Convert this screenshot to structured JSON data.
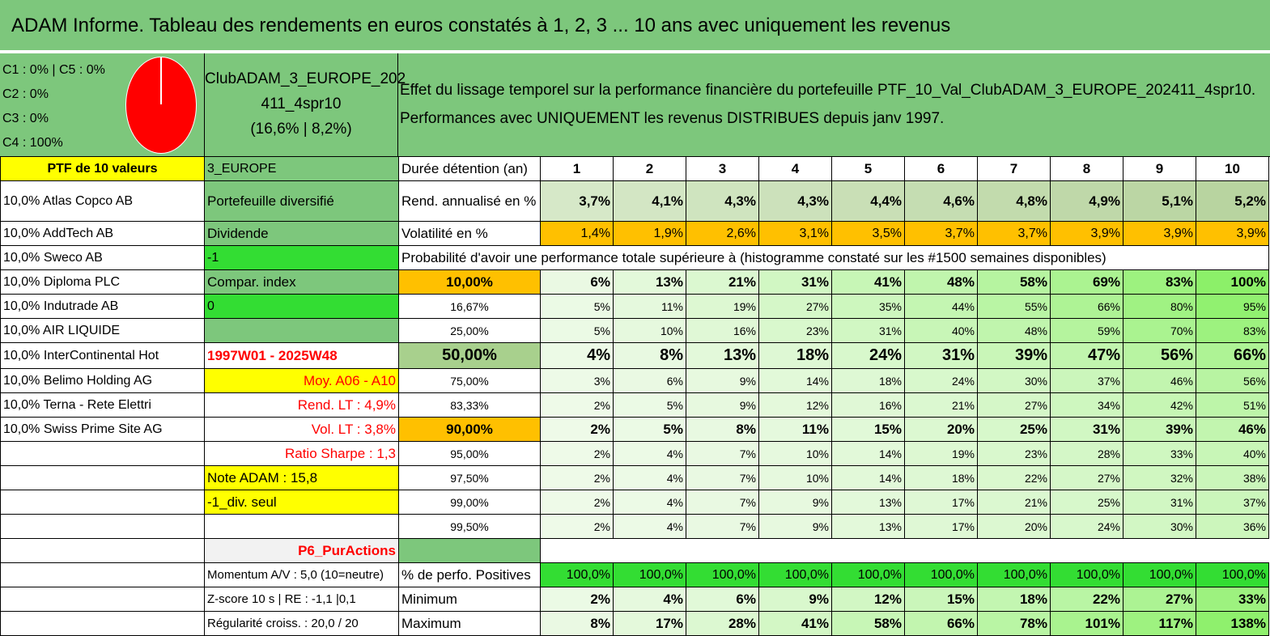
{
  "title": "ADAM Informe. Tableau des rendements en euros constatés à 1, 2, 3 ... 10 ans avec uniquement les revenus",
  "pie": {
    "legend": [
      "C1 : 0% | C5 : 0%",
      "C2 : 0%",
      "C3 : 0%",
      "C4 : 100%"
    ],
    "color": "#ff0000"
  },
  "club": {
    "line1": "ClubADAM_3_EUROPE_202",
    "line2": "411_4spr10",
    "line3": "(16,6% | 8,2%)"
  },
  "effet": {
    "line1": "Effet du lissage temporel sur la performance financière du portefeuille PTF_10_Val_ClubADAM_3_EUROPE_202411_4spr10.",
    "line2": "Performances avec UNIQUEMENT les revenus DISTRIBUES depuis janv 1997."
  },
  "ptf_label": "PTF de 10 valeurs",
  "region": "3_EUROPE",
  "duree_label": "Durée détention (an)",
  "years": [
    "1",
    "2",
    "3",
    "4",
    "5",
    "6",
    "7",
    "8",
    "9",
    "10"
  ],
  "holdings": [
    "10,0% Atlas Copco AB",
    "10,0% AddTech AB",
    "10,0% Sweco AB",
    "10,0% Diploma PLC",
    "10,0% Indutrade AB",
    "10,0% AIR LIQUIDE",
    "10,0% InterContinental Hot",
    "10,0% Belimo Holding AG",
    "10,0% Terna - Rete Elettri",
    "10,0% Swiss Prime Site AG"
  ],
  "info": {
    "portefeuille": "Portefeuille diversifié",
    "dividende": "Dividende",
    "minus1": "-1",
    "compar": "Compar. index",
    "zero": "0",
    "period": "1997W01 - 2025W48",
    "moy": "Moy. A06 - A10",
    "rend_lt": "Rend. LT : 4,9%",
    "vol_lt": "Vol. LT : 3,8%",
    "sharpe": "Ratio Sharpe : 1,3",
    "note": "Note ADAM : 15,8",
    "div_seul": "-1_div. seul",
    "p6": "P6_PurActions",
    "momentum": "Momentum A/V : 5,0 (10=neutre)",
    "zscore": "Z-score 10 s | RE : -1,1 |0,1",
    "regularite": "Régularité croiss. : 20,0 / 20"
  },
  "rend": {
    "label": "Rend. annualisé en %",
    "values": [
      "3,7%",
      "4,1%",
      "4,3%",
      "4,3%",
      "4,4%",
      "4,6%",
      "4,8%",
      "4,9%",
      "5,1%",
      "5,2%"
    ]
  },
  "vol": {
    "label": "Volatilité en %",
    "values": [
      "1,4%",
      "1,9%",
      "2,6%",
      "3,1%",
      "3,5%",
      "3,7%",
      "3,7%",
      "3,9%",
      "3,9%",
      "3,9%"
    ]
  },
  "prob_header": "Probabilité d'avoir une performance totale supérieure à (histogramme constaté sur les #1500 semaines disponibles)",
  "prob_rows": [
    {
      "threshold": "10,00%",
      "values": [
        "6%",
        "13%",
        "21%",
        "31%",
        "41%",
        "48%",
        "58%",
        "69%",
        "83%",
        "100%"
      ]
    },
    {
      "threshold": "16,67%",
      "values": [
        "5%",
        "11%",
        "19%",
        "27%",
        "35%",
        "44%",
        "55%",
        "66%",
        "80%",
        "95%"
      ]
    },
    {
      "threshold": "25,00%",
      "values": [
        "5%",
        "10%",
        "16%",
        "23%",
        "31%",
        "40%",
        "48%",
        "59%",
        "70%",
        "83%"
      ]
    },
    {
      "threshold": "50,00%",
      "values": [
        "4%",
        "8%",
        "13%",
        "18%",
        "24%",
        "31%",
        "39%",
        "47%",
        "56%",
        "66%"
      ]
    },
    {
      "threshold": "75,00%",
      "values": [
        "3%",
        "6%",
        "9%",
        "14%",
        "18%",
        "24%",
        "30%",
        "37%",
        "46%",
        "56%"
      ]
    },
    {
      "threshold": "83,33%",
      "values": [
        "2%",
        "5%",
        "9%",
        "12%",
        "16%",
        "21%",
        "27%",
        "34%",
        "42%",
        "51%"
      ]
    },
    {
      "threshold": "90,00%",
      "values": [
        "2%",
        "5%",
        "8%",
        "11%",
        "15%",
        "20%",
        "25%",
        "31%",
        "39%",
        "46%"
      ]
    },
    {
      "threshold": "95,00%",
      "values": [
        "2%",
        "4%",
        "7%",
        "10%",
        "14%",
        "19%",
        "23%",
        "28%",
        "33%",
        "40%"
      ]
    },
    {
      "threshold": "97,50%",
      "values": [
        "2%",
        "4%",
        "7%",
        "10%",
        "14%",
        "18%",
        "22%",
        "27%",
        "32%",
        "38%"
      ]
    },
    {
      "threshold": "99,00%",
      "values": [
        "2%",
        "4%",
        "7%",
        "9%",
        "13%",
        "17%",
        "21%",
        "25%",
        "31%",
        "37%"
      ]
    },
    {
      "threshold": "99,50%",
      "values": [
        "2%",
        "4%",
        "7%",
        "9%",
        "13%",
        "17%",
        "20%",
        "24%",
        "30%",
        "36%"
      ]
    }
  ],
  "positives": {
    "label": "% de perfo. Positives",
    "values": [
      "100,0%",
      "100,0%",
      "100,0%",
      "100,0%",
      "100,0%",
      "100,0%",
      "100,0%",
      "100,0%",
      "100,0%",
      "100,0%"
    ]
  },
  "minimum": {
    "label": "Minimum",
    "values": [
      "2%",
      "4%",
      "6%",
      "9%",
      "12%",
      "15%",
      "18%",
      "22%",
      "27%",
      "33%"
    ]
  },
  "maximum": {
    "label": "Maximum",
    "values": [
      "8%",
      "17%",
      "28%",
      "41%",
      "58%",
      "66%",
      "78%",
      "101%",
      "117%",
      "138%"
    ]
  },
  "colors": {
    "header_green": "#7dc77c",
    "yellow": "#ffff00",
    "orange": "#ffc000",
    "bright_green": "#33dd33",
    "pie_red": "#ff0000",
    "text_red": "#ff0000"
  }
}
